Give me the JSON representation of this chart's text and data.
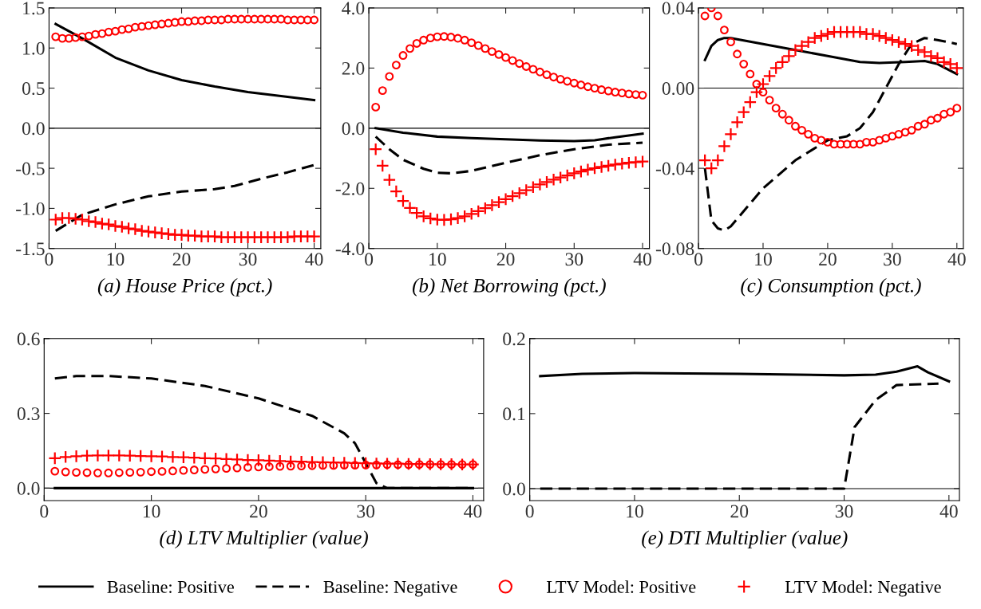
{
  "chart_data": [
    {
      "type": "line",
      "xlabel": "(a) House Price (pct.)",
      "xlim": [
        0,
        41
      ],
      "xticks": [
        0,
        10,
        20,
        30,
        40
      ],
      "ylim": [
        -1.5,
        1.5
      ],
      "yticks": [
        {
          "value": -1.5,
          "label": "-1.5"
        },
        {
          "value": -1.0,
          "label": "-1.0"
        },
        {
          "value": -0.5,
          "label": "-0.5"
        },
        {
          "value": 0,
          "label": "0.0"
        },
        {
          "value": 0.5,
          "label": "0.5"
        },
        {
          "value": 1.0,
          "label": "1.0"
        },
        {
          "value": 1.5,
          "label": "1.5"
        }
      ],
      "ref_lines": [
        {
          "axis": "y",
          "value": 0,
          "label": null,
          "color": "#000000",
          "line_style": "solid"
        }
      ],
      "grid": false,
      "legend": "bottom",
      "series": [
        {
          "name": "Baseline: Positive",
          "color": "#000000",
          "line_style": "solid",
          "marker": "none",
          "x": [
            1,
            5,
            10,
            15,
            20,
            25,
            30,
            35,
            40
          ],
          "values": [
            1.3,
            1.12,
            0.88,
            0.72,
            0.6,
            0.52,
            0.45,
            0.4,
            0.35
          ]
        },
        {
          "name": "Baseline: Negative",
          "color": "#000000",
          "line_style": "dashed",
          "marker": "none",
          "x": [
            1,
            5,
            10,
            15,
            20,
            25,
            28,
            32,
            36,
            40
          ],
          "values": [
            -1.28,
            -1.08,
            -0.95,
            -0.85,
            -0.79,
            -0.76,
            -0.72,
            -0.63,
            -0.55,
            -0.46
          ]
        },
        {
          "name": "LTV Model: Positive",
          "type": "scatter",
          "color": "#ff0000",
          "marker": "circle",
          "x": [
            1,
            2,
            3,
            4,
            5,
            6,
            7,
            8,
            9,
            10,
            11,
            12,
            13,
            14,
            15,
            16,
            17,
            18,
            19,
            20,
            21,
            22,
            23,
            24,
            25,
            26,
            27,
            28,
            29,
            30,
            31,
            32,
            33,
            34,
            35,
            36,
            37,
            38,
            39,
            40
          ],
          "values": [
            1.14,
            1.12,
            1.12,
            1.13,
            1.14,
            1.15,
            1.17,
            1.18,
            1.2,
            1.21,
            1.23,
            1.24,
            1.26,
            1.27,
            1.28,
            1.29,
            1.3,
            1.31,
            1.32,
            1.33,
            1.33,
            1.34,
            1.34,
            1.35,
            1.35,
            1.35,
            1.36,
            1.36,
            1.36,
            1.36,
            1.36,
            1.36,
            1.36,
            1.36,
            1.36,
            1.35,
            1.35,
            1.35,
            1.35,
            1.35
          ]
        },
        {
          "name": "LTV Model: Negative",
          "type": "scatter",
          "color": "#ff0000",
          "marker": "cross",
          "x": [
            1,
            2,
            3,
            4,
            5,
            6,
            7,
            8,
            9,
            10,
            11,
            12,
            13,
            14,
            15,
            16,
            17,
            18,
            19,
            20,
            21,
            22,
            23,
            24,
            25,
            26,
            27,
            28,
            29,
            30,
            31,
            32,
            33,
            34,
            35,
            36,
            37,
            38,
            39,
            40
          ],
          "values": [
            -1.14,
            -1.12,
            -1.12,
            -1.13,
            -1.14,
            -1.16,
            -1.17,
            -1.19,
            -1.2,
            -1.22,
            -1.23,
            -1.25,
            -1.26,
            -1.28,
            -1.29,
            -1.3,
            -1.31,
            -1.32,
            -1.33,
            -1.33,
            -1.34,
            -1.34,
            -1.35,
            -1.35,
            -1.35,
            -1.36,
            -1.36,
            -1.36,
            -1.36,
            -1.36,
            -1.36,
            -1.36,
            -1.36,
            -1.36,
            -1.36,
            -1.36,
            -1.35,
            -1.35,
            -1.35,
            -1.35
          ]
        }
      ]
    },
    {
      "type": "line",
      "xlabel": "(b) Net Borrowing (pct.)",
      "xlim": [
        0,
        41
      ],
      "xticks": [
        0,
        10,
        20,
        30,
        40
      ],
      "ylim": [
        -4,
        4
      ],
      "yticks": [
        {
          "value": -4,
          "label": "-4.0"
        },
        {
          "value": -2,
          "label": "-2.0"
        },
        {
          "value": 0,
          "label": "0.0"
        },
        {
          "value": 2,
          "label": "2.0"
        },
        {
          "value": 4,
          "label": "4.0"
        }
      ],
      "ref_lines": [
        {
          "axis": "y",
          "value": 0,
          "label": null,
          "color": "#000000",
          "line_style": "solid"
        }
      ],
      "grid": false,
      "series": [
        {
          "name": "Baseline: Positive",
          "color": "#000000",
          "line_style": "solid",
          "marker": "none",
          "x": [
            1,
            5,
            10,
            15,
            20,
            25,
            30,
            33,
            36,
            40
          ],
          "values": [
            0,
            -0.15,
            -0.28,
            -0.33,
            -0.37,
            -0.41,
            -0.43,
            -0.4,
            -0.3,
            -0.18
          ]
        },
        {
          "name": "Baseline: Negative",
          "color": "#000000",
          "line_style": "dashed",
          "marker": "none",
          "x": [
            1,
            3,
            5,
            8,
            10,
            12,
            15,
            20,
            25,
            30,
            35,
            40
          ],
          "values": [
            -0.28,
            -0.7,
            -1.05,
            -1.35,
            -1.48,
            -1.5,
            -1.42,
            -1.15,
            -0.9,
            -0.7,
            -0.55,
            -0.48
          ]
        },
        {
          "name": "LTV Model: Positive",
          "type": "scatter",
          "color": "#ff0000",
          "marker": "circle",
          "x": [
            1,
            2,
            3,
            4,
            5,
            6,
            7,
            8,
            9,
            10,
            11,
            12,
            13,
            14,
            15,
            16,
            17,
            18,
            19,
            20,
            21,
            22,
            23,
            24,
            25,
            26,
            27,
            28,
            29,
            30,
            31,
            32,
            33,
            34,
            35,
            36,
            37,
            38,
            39,
            40
          ],
          "values": [
            0.7,
            1.25,
            1.72,
            2.1,
            2.42,
            2.65,
            2.82,
            2.93,
            3.0,
            3.04,
            3.05,
            3.03,
            2.99,
            2.93,
            2.84,
            2.75,
            2.65,
            2.55,
            2.45,
            2.35,
            2.25,
            2.15,
            2.05,
            1.96,
            1.87,
            1.78,
            1.7,
            1.63,
            1.56,
            1.5,
            1.44,
            1.38,
            1.33,
            1.28,
            1.24,
            1.2,
            1.17,
            1.14,
            1.12,
            1.1
          ]
        },
        {
          "name": "LTV Model: Negative",
          "type": "scatter",
          "color": "#ff0000",
          "marker": "cross",
          "x": [
            1,
            2,
            3,
            4,
            5,
            6,
            7,
            8,
            9,
            10,
            11,
            12,
            13,
            14,
            15,
            16,
            17,
            18,
            19,
            20,
            21,
            22,
            23,
            24,
            25,
            26,
            27,
            28,
            29,
            30,
            31,
            32,
            33,
            34,
            35,
            36,
            37,
            38,
            39,
            40
          ],
          "values": [
            -0.7,
            -1.25,
            -1.72,
            -2.1,
            -2.42,
            -2.65,
            -2.82,
            -2.93,
            -3.0,
            -3.04,
            -3.05,
            -3.03,
            -2.99,
            -2.93,
            -2.85,
            -2.76,
            -2.66,
            -2.56,
            -2.46,
            -2.36,
            -2.26,
            -2.16,
            -2.06,
            -1.96,
            -1.87,
            -1.79,
            -1.71,
            -1.64,
            -1.57,
            -1.5,
            -1.44,
            -1.38,
            -1.33,
            -1.29,
            -1.25,
            -1.21,
            -1.18,
            -1.15,
            -1.13,
            -1.11
          ]
        }
      ]
    },
    {
      "type": "line",
      "xlabel": "(c) Consumption (pct.)",
      "xlim": [
        0,
        41
      ],
      "xticks": [
        0,
        10,
        20,
        30,
        40
      ],
      "ylim": [
        -0.08,
        0.04
      ],
      "yticks": [
        {
          "value": -0.08,
          "label": "-0.08"
        },
        {
          "value": -0.04,
          "label": "-0.04"
        },
        {
          "value": 0,
          "label": "0.00"
        },
        {
          "value": 0.04,
          "label": "0.04"
        }
      ],
      "ref_lines": [
        {
          "axis": "y",
          "value": 0,
          "label": null,
          "color": "#000000",
          "line_style": "solid"
        }
      ],
      "grid": false,
      "series": [
        {
          "name": "Baseline: Positive",
          "color": "#000000",
          "line_style": "solid",
          "marker": "none",
          "x": [
            1,
            2,
            3,
            4,
            5,
            10,
            15,
            20,
            25,
            28,
            32,
            35,
            37,
            40
          ],
          "values": [
            0.014,
            0.021,
            0.024,
            0.025,
            0.025,
            0.022,
            0.019,
            0.016,
            0.013,
            0.0125,
            0.013,
            0.0135,
            0.012,
            0.007
          ]
        },
        {
          "name": "Baseline: Negative",
          "color": "#000000",
          "line_style": "dashed",
          "marker": "none",
          "x": [
            1,
            2,
            3,
            4,
            5,
            10,
            15,
            20,
            23,
            25,
            27,
            29,
            31,
            33,
            35,
            37,
            40
          ],
          "values": [
            -0.04,
            -0.066,
            -0.07,
            -0.071,
            -0.069,
            -0.05,
            -0.036,
            -0.026,
            -0.024,
            -0.02,
            -0.012,
            0.0,
            0.012,
            0.022,
            0.025,
            0.024,
            0.022
          ]
        },
        {
          "name": "LTV Model: Positive",
          "type": "scatter",
          "color": "#ff0000",
          "marker": "circle",
          "x": [
            1,
            2,
            3,
            4,
            5,
            6,
            7,
            8,
            9,
            10,
            11,
            12,
            13,
            14,
            15,
            16,
            17,
            18,
            19,
            20,
            21,
            22,
            23,
            24,
            25,
            26,
            27,
            28,
            29,
            30,
            31,
            32,
            33,
            34,
            35,
            36,
            37,
            38,
            39,
            40
          ],
          "values": [
            0.036,
            0.04,
            0.036,
            0.029,
            0.023,
            0.017,
            0.012,
            0.007,
            0.002,
            -0.002,
            -0.006,
            -0.01,
            -0.013,
            -0.016,
            -0.019,
            -0.021,
            -0.023,
            -0.025,
            -0.026,
            -0.027,
            -0.028,
            -0.028,
            -0.028,
            -0.028,
            -0.028,
            -0.027,
            -0.027,
            -0.026,
            -0.025,
            -0.024,
            -0.023,
            -0.022,
            -0.021,
            -0.019,
            -0.018,
            -0.016,
            -0.015,
            -0.013,
            -0.012,
            -0.01
          ]
        },
        {
          "name": "LTV Model: Negative",
          "type": "scatter",
          "color": "#ff0000",
          "marker": "cross",
          "x": [
            1,
            2,
            3,
            4,
            5,
            6,
            7,
            8,
            9,
            10,
            11,
            12,
            13,
            14,
            15,
            16,
            17,
            18,
            19,
            20,
            21,
            22,
            23,
            24,
            25,
            26,
            27,
            28,
            29,
            30,
            31,
            32,
            33,
            34,
            35,
            36,
            37,
            38,
            39,
            40
          ],
          "values": [
            -0.036,
            -0.04,
            -0.036,
            -0.029,
            -0.023,
            -0.017,
            -0.012,
            -0.007,
            -0.002,
            0.002,
            0.006,
            0.01,
            0.013,
            0.016,
            0.019,
            0.021,
            0.023,
            0.025,
            0.026,
            0.027,
            0.028,
            0.028,
            0.028,
            0.028,
            0.028,
            0.027,
            0.027,
            0.026,
            0.025,
            0.024,
            0.023,
            0.022,
            0.021,
            0.019,
            0.018,
            0.016,
            0.015,
            0.013,
            0.012,
            0.01
          ]
        }
      ]
    },
    {
      "type": "line",
      "xlabel": "(d) LTV Multiplier (value)",
      "xlim": [
        0,
        41
      ],
      "xticks": [
        0,
        10,
        20,
        30,
        40
      ],
      "ylim": [
        -0.05,
        0.6
      ],
      "yticks": [
        {
          "value": 0,
          "label": "0.0"
        },
        {
          "value": 0.3,
          "label": "0.3"
        },
        {
          "value": 0.6,
          "label": "0.6"
        }
      ],
      "ref_lines": [
        {
          "axis": "y",
          "value": 0,
          "label": null,
          "color": "#000000",
          "line_style": "solid"
        }
      ],
      "grid": false,
      "series": [
        {
          "name": "Baseline: Positive",
          "color": "#000000",
          "line_style": "solid",
          "marker": "none",
          "x": [
            1,
            40
          ],
          "values": [
            0,
            0
          ]
        },
        {
          "name": "Baseline: Negative",
          "color": "#000000",
          "line_style": "dashed",
          "marker": "none",
          "x": [
            1,
            3,
            6,
            10,
            15,
            20,
            25,
            28,
            29,
            30,
            31,
            32,
            40
          ],
          "values": [
            0.44,
            0.45,
            0.45,
            0.44,
            0.41,
            0.36,
            0.29,
            0.22,
            0.18,
            0.1,
            0.02,
            0.0,
            0.0
          ]
        },
        {
          "name": "LTV Model: Positive",
          "type": "scatter",
          "color": "#ff0000",
          "marker": "circle",
          "x": [
            1,
            2,
            3,
            4,
            5,
            6,
            7,
            8,
            9,
            10,
            11,
            12,
            13,
            14,
            15,
            16,
            17,
            18,
            19,
            20,
            21,
            22,
            23,
            24,
            25,
            26,
            27,
            28,
            29,
            30,
            31,
            32,
            33,
            34,
            35,
            36,
            37,
            38,
            39,
            40
          ],
          "values": [
            0.068,
            0.065,
            0.063,
            0.062,
            0.061,
            0.061,
            0.062,
            0.063,
            0.064,
            0.066,
            0.067,
            0.069,
            0.071,
            0.073,
            0.075,
            0.077,
            0.079,
            0.081,
            0.083,
            0.085,
            0.086,
            0.087,
            0.088,
            0.089,
            0.09,
            0.091,
            0.091,
            0.092,
            0.092,
            0.093,
            0.093,
            0.094,
            0.094,
            0.094,
            0.095,
            0.095,
            0.095,
            0.095,
            0.095,
            0.095
          ]
        },
        {
          "name": "LTV Model: Negative",
          "type": "scatter",
          "color": "#ff0000",
          "marker": "cross",
          "x": [
            1,
            2,
            3,
            4,
            5,
            6,
            7,
            8,
            9,
            10,
            11,
            12,
            13,
            14,
            15,
            16,
            17,
            18,
            19,
            20,
            21,
            22,
            23,
            24,
            25,
            26,
            27,
            28,
            29,
            30,
            31,
            32,
            33,
            34,
            35,
            36,
            37,
            38,
            39,
            40
          ],
          "values": [
            0.12,
            0.125,
            0.128,
            0.13,
            0.131,
            0.131,
            0.131,
            0.13,
            0.129,
            0.128,
            0.127,
            0.125,
            0.124,
            0.122,
            0.12,
            0.119,
            0.117,
            0.115,
            0.113,
            0.112,
            0.11,
            0.109,
            0.107,
            0.106,
            0.105,
            0.104,
            0.103,
            0.102,
            0.101,
            0.1,
            0.099,
            0.098,
            0.098,
            0.097,
            0.097,
            0.096,
            0.096,
            0.096,
            0.095,
            0.095
          ]
        }
      ]
    },
    {
      "type": "line",
      "xlabel": "(e) DTI Multiplier (value)",
      "xlim": [
        0,
        41
      ],
      "xticks": [
        0,
        10,
        20,
        30,
        40
      ],
      "ylim": [
        -0.016,
        0.2
      ],
      "yticks": [
        {
          "value": 0,
          "label": "0.0"
        },
        {
          "value": 0.1,
          "label": "0.1"
        },
        {
          "value": 0.2,
          "label": "0.2"
        }
      ],
      "ref_lines": [
        {
          "axis": "y",
          "value": 0,
          "label": null,
          "color": "#000000",
          "line_style": "solid"
        }
      ],
      "grid": false,
      "series": [
        {
          "name": "Baseline: Positive",
          "color": "#000000",
          "line_style": "solid",
          "marker": "none",
          "x": [
            1,
            5,
            10,
            20,
            30,
            33,
            35,
            37,
            38,
            40
          ],
          "values": [
            0.15,
            0.153,
            0.154,
            0.153,
            0.151,
            0.152,
            0.156,
            0.163,
            0.155,
            0.143
          ]
        },
        {
          "name": "Baseline: Negative",
          "color": "#000000",
          "line_style": "dashed",
          "marker": "none",
          "x": [
            1,
            30,
            31,
            33,
            35,
            39
          ],
          "values": [
            0,
            0,
            0.082,
            0.118,
            0.138,
            0.14
          ]
        }
      ]
    }
  ]
}
